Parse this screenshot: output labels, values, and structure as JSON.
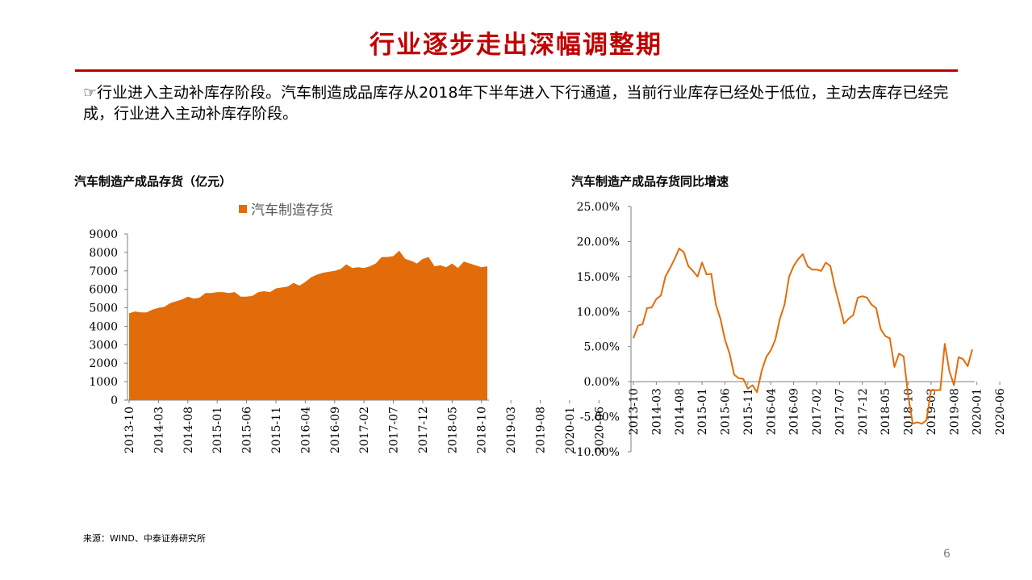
{
  "slide": {
    "title": "行业逐步走出深幅调整期",
    "intro_bullet": "☞",
    "intro": "行业进入主动补库存阶段。汽车制造成品库存从2018年下半年进入下行通道，当前行业库存已经处于低位，主动去库存已经完成，行业进入主动补库存阶段。",
    "source": "来源：WIND、中泰证券研究所",
    "page_number": "6"
  },
  "colors": {
    "title": "#c00000",
    "area": "#e36c0a",
    "line": "#e36c0a"
  },
  "chart_data": [
    {
      "type": "area",
      "title": "汽车制造产成品存货（亿元）",
      "legend": [
        "汽车制造存货"
      ],
      "legend_position": "top",
      "ylim": [
        0,
        9000
      ],
      "yticks": [
        "0",
        "1000",
        "2000",
        "3000",
        "4000",
        "5000",
        "6000",
        "7000",
        "8000",
        "9000"
      ],
      "xtick_labels": [
        "2013-10",
        "2014-03",
        "2014-08",
        "2015-01",
        "2015-06",
        "2015-11",
        "2016-04",
        "2016-09",
        "2017-02",
        "2017-07",
        "2017-12",
        "2018-05",
        "2018-10",
        "2019-03",
        "2019-08",
        "2020-01",
        "2020-06"
      ],
      "start_month": "2013-10",
      "series": [
        {
          "name": "汽车制造存货",
          "values": [
            4700,
            4800,
            4750,
            4750,
            4900,
            5000,
            5050,
            5250,
            5350,
            5450,
            5600,
            5500,
            5550,
            5800,
            5800,
            5850,
            5850,
            5800,
            5850,
            5600,
            5600,
            5650,
            5850,
            5900,
            5850,
            6050,
            6100,
            6150,
            6350,
            6200,
            6400,
            6650,
            6800,
            6900,
            6950,
            7000,
            7100,
            7350,
            7150,
            7200,
            7150,
            7250,
            7400,
            7750,
            7750,
            7800,
            8100,
            7650,
            7550,
            7400,
            7650,
            7750,
            7250,
            7300,
            7200,
            7400,
            7150,
            7500,
            7400,
            7300,
            7200,
            7250
          ]
        }
      ]
    },
    {
      "type": "line",
      "title": "汽车制造产成品存货同比增速",
      "ylim": [
        -10,
        25
      ],
      "yticks": [
        "-10.00%",
        "-5.00%",
        "0.00%",
        "5.00%",
        "10.00%",
        "15.00%",
        "20.00%",
        "25.00%"
      ],
      "xtick_labels": [
        "2013-10",
        "2014-03",
        "2014-08",
        "2015-01",
        "2015-06",
        "2015-11",
        "2016-04",
        "2016-09",
        "2017-02",
        "2017-07",
        "2017-12",
        "2018-05",
        "2018-10",
        "2019-03",
        "2019-08",
        "2020-01",
        "2020-06"
      ],
      "start_month": "2013-10",
      "series": [
        {
          "name": "汽车制造产成品存货同比增速",
          "values": [
            6.2,
            8,
            8.2,
            10.5,
            10.6,
            11.8,
            12.3,
            15,
            16.2,
            17.5,
            19,
            18.5,
            16.5,
            15.8,
            15,
            17,
            15.3,
            15.4,
            11,
            9,
            6,
            4,
            1,
            0.5,
            0.4,
            -1,
            -0.5,
            -1.5,
            1.5,
            3.5,
            4.5,
            6,
            9,
            11,
            15,
            16.5,
            17.5,
            18.2,
            16.5,
            16,
            16,
            15.8,
            17,
            16.5,
            13.5,
            11,
            8.3,
            9,
            9.5,
            12,
            12.2,
            12,
            11,
            10.5,
            7.5,
            6.5,
            6.2,
            2.1,
            4,
            3.6,
            -2,
            -6,
            -5.8,
            -6,
            -5.5,
            -1.2,
            -1.2,
            -1.2,
            5.4,
            1.5,
            -0.5,
            3.5,
            3.2,
            2.2,
            4.6
          ]
        }
      ]
    }
  ]
}
